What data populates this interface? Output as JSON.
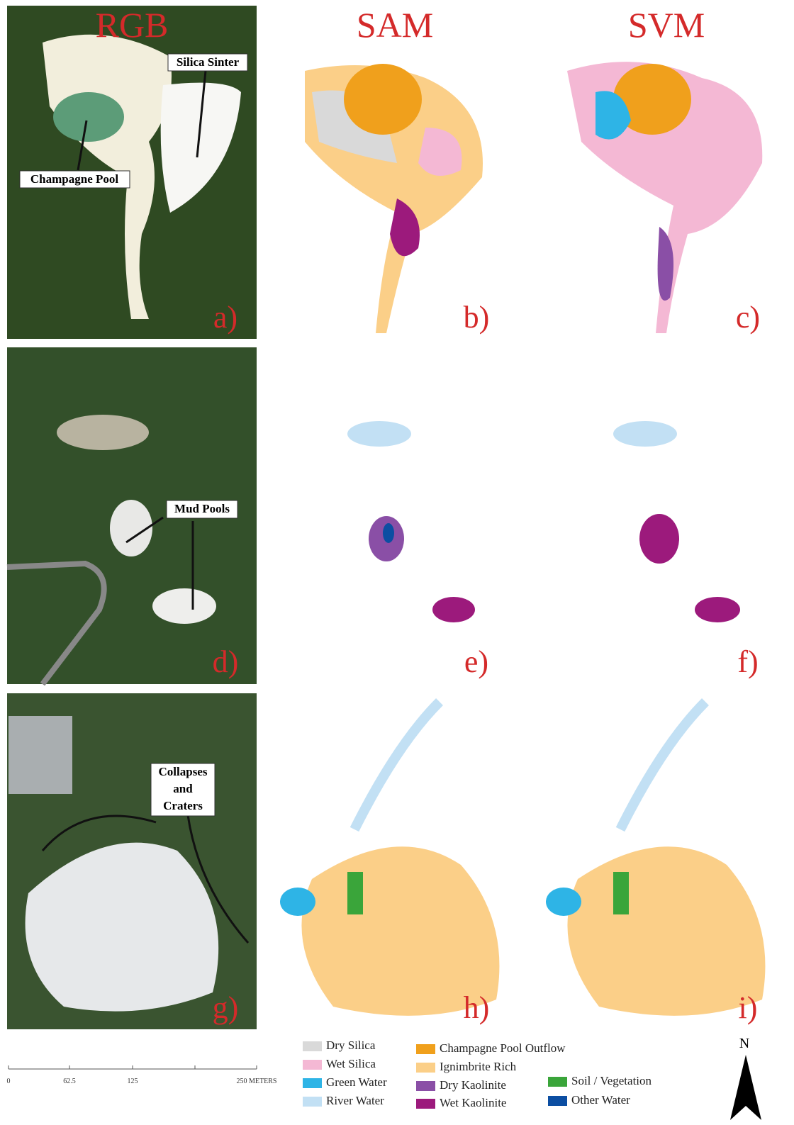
{
  "columns": [
    "RGB",
    "SAM",
    "SVM"
  ],
  "panels": [
    "a)",
    "b)",
    "c)",
    "d)",
    "e)",
    "f)",
    "g)",
    "h)",
    "i)"
  ],
  "annotations": {
    "silica_sinter": "Silica Sinter",
    "champagne_pool": "Champagne Pool",
    "mud_pools": "Mud Pools",
    "collapses": [
      "Collapses",
      "and",
      "Craters"
    ]
  },
  "scale_bar": {
    "labels": [
      "0",
      "62.5",
      "125",
      "250 METERS"
    ]
  },
  "legend": [
    {
      "label": "Dry Silica",
      "color": "#d9d9d9"
    },
    {
      "label": "Wet Silica",
      "color": "#f4b8d4"
    },
    {
      "label": "Green Water",
      "color": "#2eb4e6"
    },
    {
      "label": "River Water",
      "color": "#c2e0f4"
    },
    {
      "label": "Champagne Pool Outflow",
      "color": "#f0a01c"
    },
    {
      "label": "Ignimbrite Rich",
      "color": "#fbcf88"
    },
    {
      "label": "Dry Kaolinite",
      "color": "#8a4fa6"
    },
    {
      "label": "Wet Kaolinite",
      "color": "#9c1a7c"
    },
    {
      "label": "Soil / Vegetation",
      "color": "#3aa53a"
    },
    {
      "label": "Other Water",
      "color": "#0c4ea2"
    }
  ],
  "north": "N"
}
